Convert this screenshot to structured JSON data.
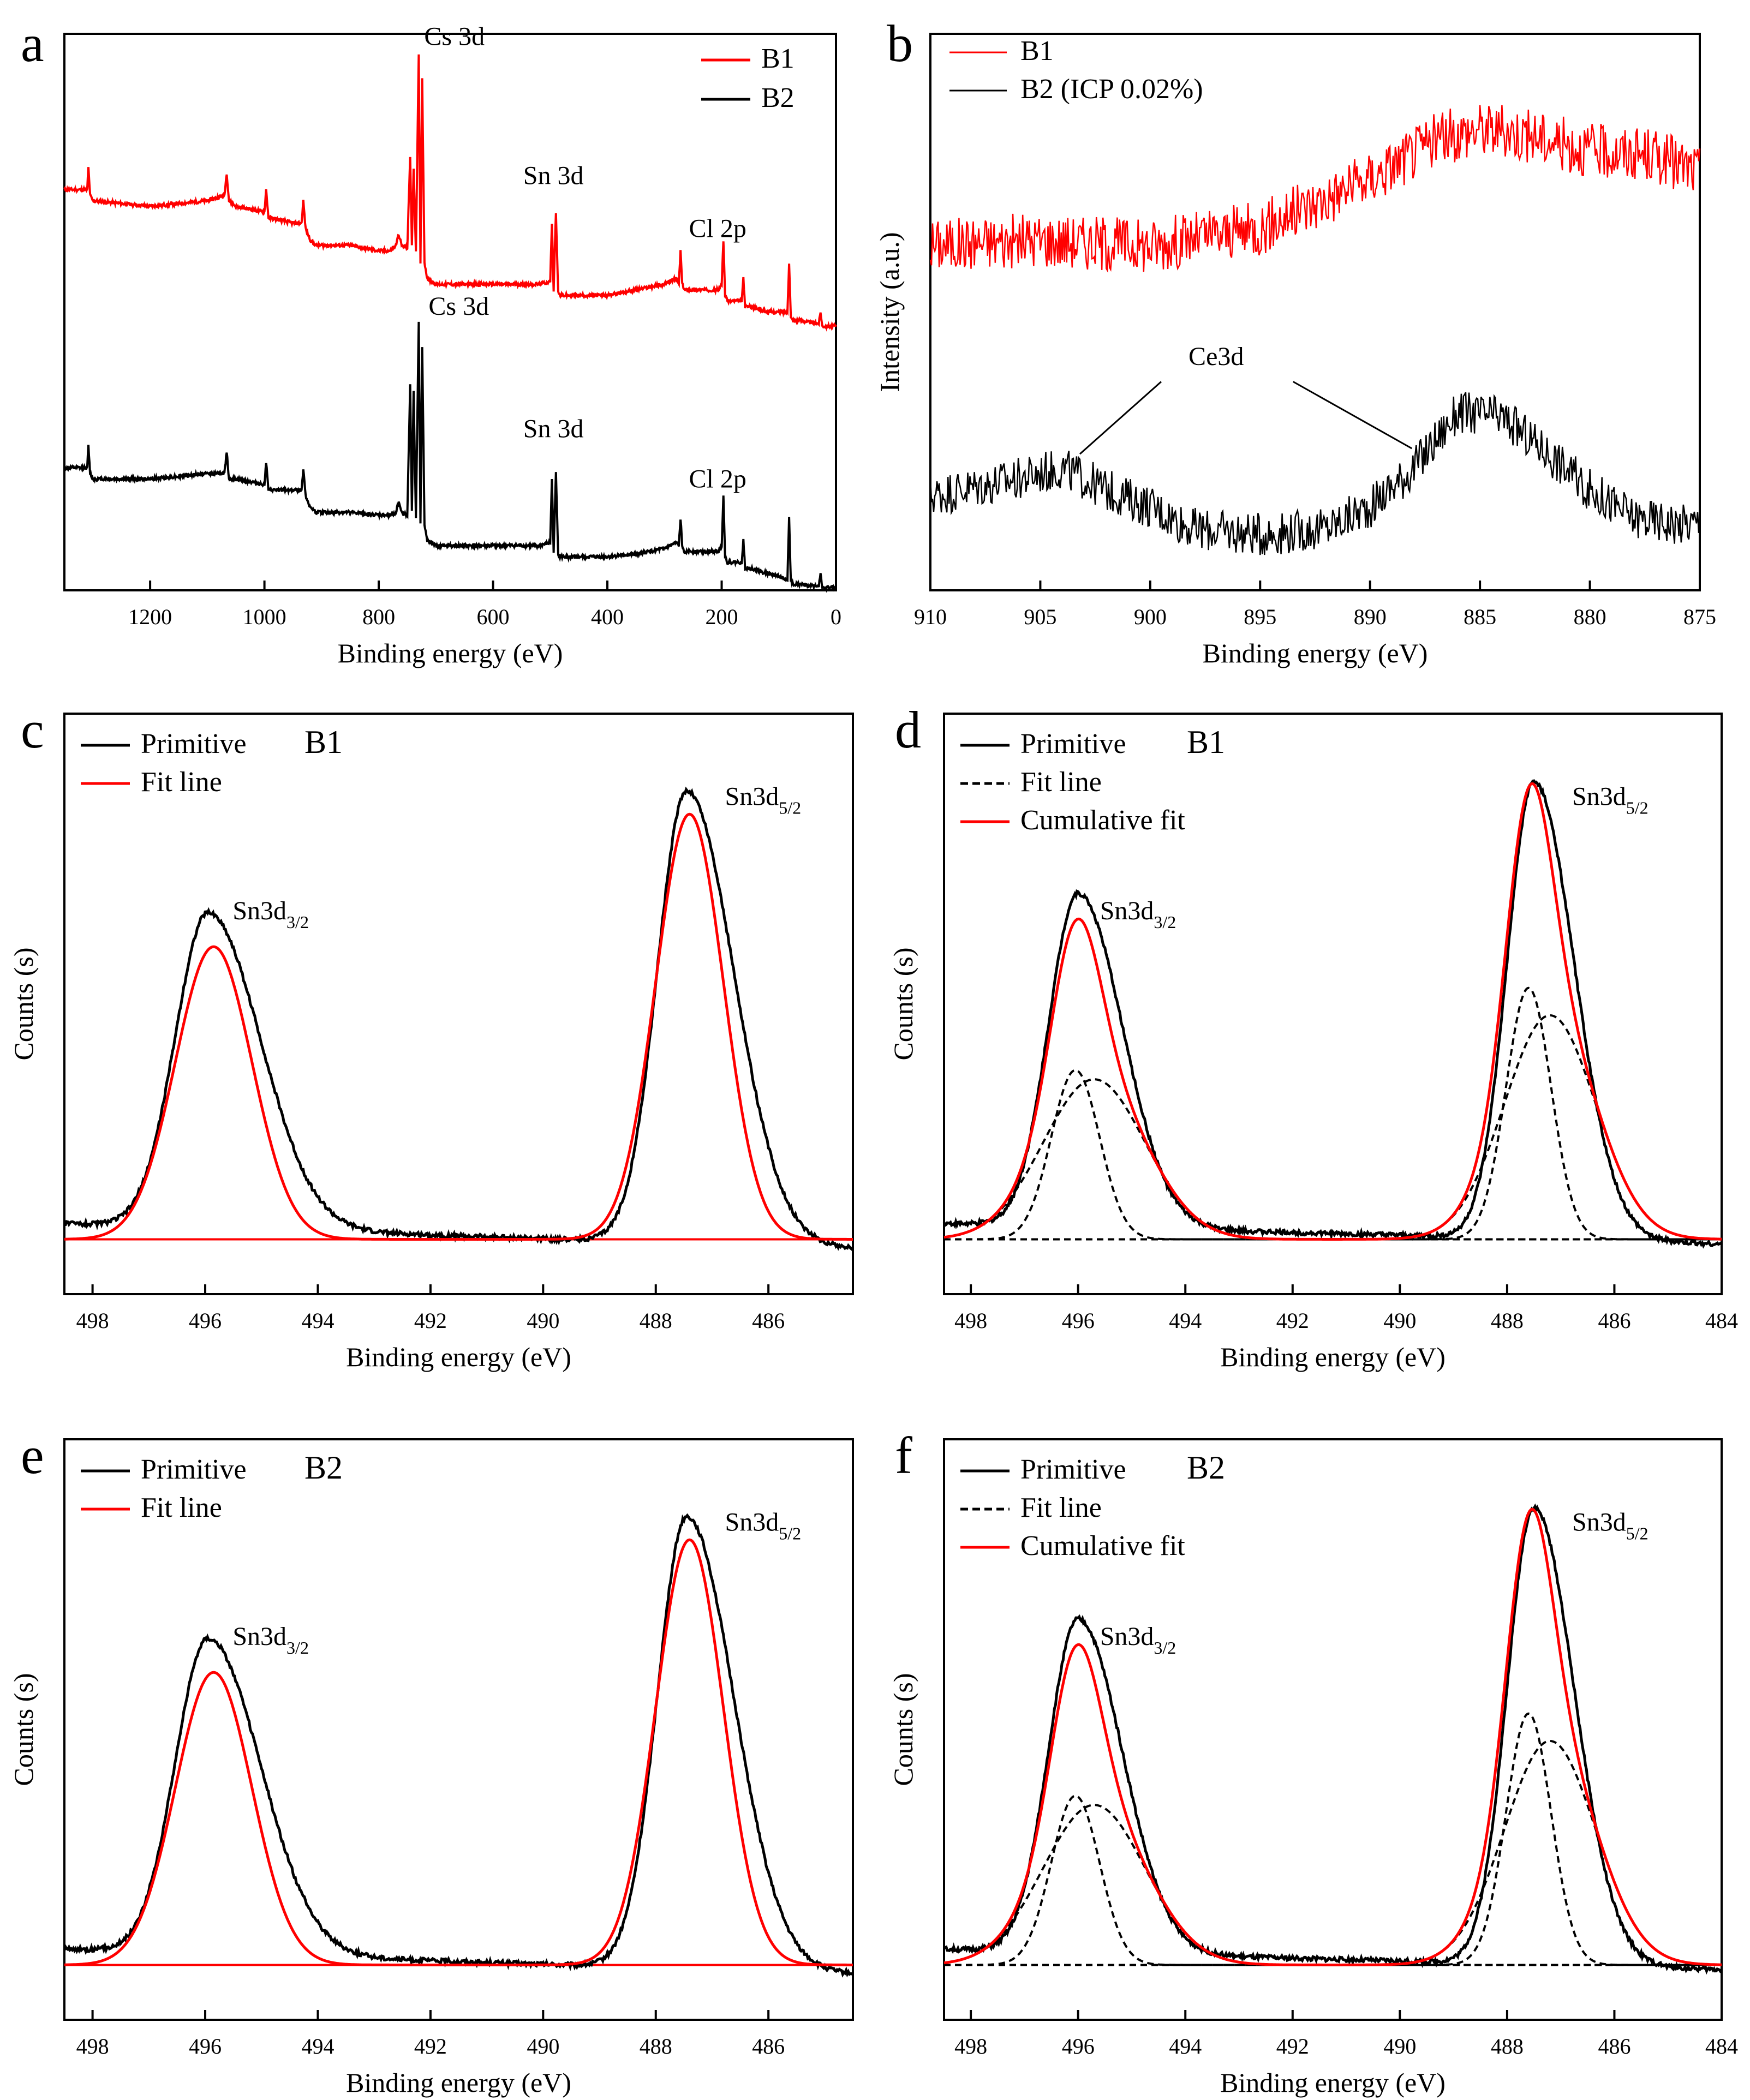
{
  "chart_data": [
    {
      "panel": "a",
      "type": "line",
      "xlabel": "Binding energy (eV)",
      "ylabel": "",
      "xlim": [
        1350,
        0
      ],
      "ylim": [
        0,
        10
      ],
      "xticks": [
        1200,
        1000,
        800,
        600,
        400,
        200,
        0
      ],
      "legend": {
        "position": "top-right",
        "entries": [
          {
            "label": "B1",
            "color": "#ff0000"
          },
          {
            "label": "B2",
            "color": "#000000"
          }
        ]
      },
      "series": [
        {
          "name": "B1",
          "color": "#ff0000",
          "x": [
            1350,
            1310,
            1308,
            1305,
            1300,
            1200,
            1100,
            1070,
            1066,
            1062,
            1050,
            1000,
            997,
            993,
            950,
            935,
            932,
            928,
            920,
            910,
            850,
            800,
            780,
            770,
            765,
            760,
            750,
            745,
            742,
            739,
            735,
            730,
            727,
            724,
            720,
            715,
            700,
            600,
            520,
            500,
            497,
            494,
            490,
            486,
            483,
            480,
            450,
            400,
            350,
            300,
            280,
            275,
            272,
            269,
            265,
            230,
            205,
            200,
            197,
            194,
            190,
            170,
            165,
            162,
            159,
            150,
            120,
            100,
            90,
            85,
            82,
            79,
            75,
            60,
            40,
            30,
            27,
            24,
            20,
            0
          ],
          "y": [
            7.2,
            7.2,
            7.6,
            7.1,
            7.0,
            6.9,
            7.0,
            7.1,
            7.5,
            7.0,
            6.9,
            6.8,
            7.2,
            6.7,
            6.6,
            6.6,
            7.0,
            6.5,
            6.3,
            6.2,
            6.2,
            6.1,
            6.1,
            6.2,
            6.4,
            6.2,
            6.15,
            7.8,
            6.2,
            7.6,
            6.1,
            9.6,
            5.9,
            9.2,
            5.9,
            5.6,
            5.5,
            5.5,
            5.5,
            5.55,
            6.6,
            5.4,
            6.8,
            5.35,
            5.3,
            5.3,
            5.3,
            5.3,
            5.4,
            5.5,
            5.6,
            5.5,
            6.1,
            5.5,
            5.4,
            5.4,
            5.4,
            5.5,
            6.3,
            5.3,
            5.2,
            5.2,
            5.2,
            5.6,
            5.1,
            5.1,
            5.0,
            5.0,
            5.0,
            5.0,
            5.9,
            4.9,
            4.85,
            4.85,
            4.8,
            4.8,
            5.0,
            4.75,
            4.75,
            4.75
          ],
          "annotations": [
            {
              "text": "Cs 3d",
              "x": 730
            },
            {
              "text": "Sn 3d",
              "x": 490
            },
            {
              "text": "Cl 2p",
              "x": 200
            }
          ]
        },
        {
          "name": "B2",
          "color": "#000000",
          "x": [
            1350,
            1310,
            1308,
            1305,
            1300,
            1200,
            1100,
            1070,
            1066,
            1062,
            1050,
            1000,
            997,
            993,
            950,
            935,
            932,
            928,
            920,
            910,
            850,
            800,
            780,
            770,
            765,
            760,
            750,
            745,
            742,
            739,
            735,
            730,
            727,
            724,
            720,
            715,
            700,
            600,
            520,
            500,
            497,
            494,
            490,
            486,
            483,
            480,
            450,
            400,
            350,
            300,
            280,
            275,
            272,
            269,
            265,
            230,
            205,
            200,
            197,
            194,
            190,
            170,
            165,
            162,
            159,
            150,
            120,
            100,
            90,
            85,
            82,
            79,
            75,
            60,
            40,
            30,
            27,
            24,
            20,
            0
          ],
          "y": [
            2.2,
            2.2,
            2.6,
            2.1,
            2.0,
            2.0,
            2.1,
            2.1,
            2.5,
            2.0,
            2.0,
            1.9,
            2.3,
            1.8,
            1.8,
            1.8,
            2.2,
            1.7,
            1.5,
            1.4,
            1.4,
            1.35,
            1.35,
            1.4,
            1.6,
            1.4,
            1.35,
            3.7,
            1.4,
            3.6,
            1.3,
            4.8,
            1.2,
            4.4,
            1.2,
            0.9,
            0.8,
            0.8,
            0.8,
            0.85,
            2.0,
            0.7,
            2.1,
            0.65,
            0.6,
            0.6,
            0.6,
            0.6,
            0.65,
            0.75,
            0.85,
            0.8,
            1.3,
            0.8,
            0.7,
            0.7,
            0.7,
            0.8,
            1.7,
            0.6,
            0.5,
            0.5,
            0.5,
            0.9,
            0.4,
            0.4,
            0.3,
            0.25,
            0.2,
            0.2,
            1.3,
            0.15,
            0.12,
            0.1,
            0.08,
            0.08,
            0.3,
            0.06,
            0.05,
            0.05
          ],
          "annotations": [
            {
              "text": "Cs 3d",
              "x": 730
            },
            {
              "text": "Sn 3d",
              "x": 490
            },
            {
              "text": "Cl 2p",
              "x": 200
            }
          ]
        }
      ]
    },
    {
      "panel": "b",
      "type": "line",
      "xlabel": "Binding energy (eV)",
      "ylabel": "Intensity (a.u.)",
      "xlim": [
        910,
        875
      ],
      "ylim": [
        0,
        10
      ],
      "xticks": [
        910,
        905,
        900,
        895,
        890,
        885,
        880,
        875
      ],
      "legend": {
        "position": "top-left",
        "entries": [
          {
            "label": "B1",
            "color": "#ff0000"
          },
          {
            "label": "B2 (ICP 0.02%)",
            "color": "#000000"
          }
        ]
      },
      "annotation": "Ce3d",
      "series": [
        {
          "name": "B1",
          "color": "#ff0000",
          "x": [
            910,
            905,
            900,
            895,
            890,
            887,
            885,
            883,
            880,
            877,
            875
          ],
          "y": [
            6.2,
            6.3,
            6.2,
            6.5,
            7.4,
            8.1,
            8.3,
            8.2,
            7.9,
            7.8,
            7.5
          ],
          "noise": 0.45
        },
        {
          "name": "B2 (ICP 0.02%)",
          "color": "#000000",
          "x": [
            910,
            906,
            904,
            902,
            900,
            898,
            895,
            892,
            890,
            888,
            886,
            884,
            882,
            880,
            878,
            876,
            875
          ],
          "y": [
            1.7,
            2.0,
            2.2,
            1.8,
            1.5,
            1.1,
            1.0,
            1.1,
            1.5,
            2.2,
            3.2,
            3.1,
            2.5,
            1.8,
            1.3,
            1.2,
            1.2
          ],
          "noise": 0.35
        }
      ]
    },
    {
      "panel": "c",
      "type": "line",
      "sample_label": "B1",
      "xlabel": "Binding energy (eV)",
      "ylabel": "Counts (s)",
      "xlim": [
        498.5,
        484.5
      ],
      "ylim": [
        -1.2,
        11.5
      ],
      "xticks": [
        498,
        496,
        494,
        492,
        490,
        488,
        486
      ],
      "legend": {
        "position": "top-left",
        "entries": [
          {
            "label": "Primitive",
            "color": "#000000",
            "style": "solid"
          },
          {
            "label": "Fit line",
            "color": "#ff0000",
            "style": "solid"
          }
        ]
      },
      "annotations": [
        {
          "text": "Sn3d",
          "sub": "3/2",
          "x": 495.9
        },
        {
          "text": "Sn3d",
          "sub": "5/2",
          "x": 487.45
        }
      ],
      "series": [
        {
          "name": "Primitive",
          "color": "#000000",
          "peaks": [
            {
              "center": 495.95,
              "height": 6.9,
              "sigma": 0.58,
              "tail": 1.6
            },
            {
              "center": 487.45,
              "height": 9.9,
              "sigma": 0.52,
              "tail": 1.6
            }
          ],
          "baseline_left": 0.35,
          "baseline_right": -0.2,
          "noise": 0.05
        },
        {
          "name": "Fit line",
          "color": "#ff0000",
          "peaks": [
            {
              "center": 495.85,
              "height": 6.4,
              "sigma": 0.68
            },
            {
              "center": 487.4,
              "height": 9.3,
              "sigma": 0.6
            }
          ],
          "baseline_left": 0,
          "baseline_right": 0
        }
      ]
    },
    {
      "panel": "d",
      "type": "line",
      "sample_label": "B1",
      "xlabel": "Binding energy (eV)",
      "ylabel": "Counts (s)",
      "xlim": [
        498.5,
        484
      ],
      "ylim": [
        -1.2,
        11.5
      ],
      "xticks": [
        498,
        496,
        494,
        492,
        490,
        488,
        486,
        484
      ],
      "legend": {
        "position": "top-left",
        "entries": [
          {
            "label": "Primitive",
            "color": "#000000",
            "style": "solid"
          },
          {
            "label": "Fit line",
            "color": "#000000",
            "style": "dashed"
          },
          {
            "label": "Cumulative fit",
            "color": "#ff0000",
            "style": "solid"
          }
        ]
      },
      "annotations": [
        {
          "text": "Sn3d",
          "sub": "3/2",
          "x": 496.0
        },
        {
          "text": "Sn3d",
          "sub": "5/2",
          "x": 487.5
        }
      ],
      "series": [
        {
          "name": "Primitive",
          "color": "#000000",
          "peaks": [
            {
              "center": 496.0,
              "height": 7.3,
              "sigma": 0.55,
              "tail": 1.5
            },
            {
              "center": 487.5,
              "height": 10.0,
              "sigma": 0.5,
              "tail": 1.5
            }
          ],
          "baseline_left": 0.35,
          "baseline_right": -0.1,
          "noise": 0.05
        },
        {
          "name": "Fit line 1",
          "color": "#000000",
          "dash": true,
          "peaks": [
            {
              "center": 496.05,
              "height": 3.7,
              "sigma": 0.45
            }
          ],
          "baseline_left": 0,
          "baseline_right": 0
        },
        {
          "name": "Fit line 2",
          "color": "#000000",
          "dash": true,
          "peaks": [
            {
              "center": 495.7,
              "height": 3.5,
              "sigma": 0.95
            }
          ],
          "baseline_left": 0,
          "baseline_right": 0
        },
        {
          "name": "Fit line 3",
          "color": "#000000",
          "dash": true,
          "peaks": [
            {
              "center": 487.6,
              "height": 5.5,
              "sigma": 0.42
            }
          ],
          "baseline_left": 0,
          "baseline_right": 0
        },
        {
          "name": "Fit line 4",
          "color": "#000000",
          "dash": true,
          "peaks": [
            {
              "center": 487.2,
              "height": 4.9,
              "sigma": 0.85
            }
          ],
          "baseline_left": 0,
          "baseline_right": 0
        },
        {
          "name": "Cumulative fit",
          "color": "#ff0000",
          "peaks": [
            {
              "center": 496.05,
              "height": 3.7,
              "sigma": 0.45
            },
            {
              "center": 495.7,
              "height": 3.5,
              "sigma": 0.95
            },
            {
              "center": 487.6,
              "height": 5.5,
              "sigma": 0.42
            },
            {
              "center": 487.2,
              "height": 4.9,
              "sigma": 0.85
            }
          ],
          "baseline_left": 0,
          "baseline_right": 0
        }
      ]
    },
    {
      "panel": "e",
      "type": "line",
      "sample_label": "B2",
      "xlabel": "Binding energy (eV)",
      "ylabel": "Counts (s)",
      "xlim": [
        498.5,
        484.5
      ],
      "ylim": [
        -1.2,
        11.5
      ],
      "xticks": [
        498,
        496,
        494,
        492,
        490,
        488,
        486
      ],
      "legend": {
        "position": "top-left",
        "entries": [
          {
            "label": "Primitive",
            "color": "#000000",
            "style": "solid"
          },
          {
            "label": "Fit line",
            "color": "#ff0000",
            "style": "solid"
          }
        ]
      },
      "annotations": [
        {
          "text": "Sn3d",
          "sub": "3/2",
          "x": 495.9
        },
        {
          "text": "Sn3d",
          "sub": "5/2",
          "x": 487.45
        }
      ],
      "series": [
        {
          "name": "Primitive",
          "color": "#000000",
          "peaks": [
            {
              "center": 495.95,
              "height": 6.9,
              "sigma": 0.58,
              "tail": 1.6
            },
            {
              "center": 487.45,
              "height": 9.9,
              "sigma": 0.52,
              "tail": 1.6
            }
          ],
          "baseline_left": 0.35,
          "baseline_right": -0.2,
          "noise": 0.05
        },
        {
          "name": "Fit line",
          "color": "#ff0000",
          "peaks": [
            {
              "center": 495.85,
              "height": 6.4,
              "sigma": 0.68
            },
            {
              "center": 487.4,
              "height": 9.3,
              "sigma": 0.6
            }
          ],
          "baseline_left": 0,
          "baseline_right": 0
        }
      ]
    },
    {
      "panel": "f",
      "type": "line",
      "sample_label": "B2",
      "xlabel": "Binding energy (eV)",
      "ylabel": "Counts (s)",
      "xlim": [
        498.5,
        484
      ],
      "ylim": [
        -1.2,
        11.5
      ],
      "xticks": [
        498,
        496,
        494,
        492,
        490,
        488,
        486,
        484
      ],
      "legend": {
        "position": "top-left",
        "entries": [
          {
            "label": "Primitive",
            "color": "#000000",
            "style": "solid"
          },
          {
            "label": "Fit line",
            "color": "#000000",
            "style": "dashed"
          },
          {
            "label": "Cumulative fit",
            "color": "#ff0000",
            "style": "solid"
          }
        ]
      },
      "annotations": [
        {
          "text": "Sn3d",
          "sub": "3/2",
          "x": 496.0
        },
        {
          "text": "Sn3d",
          "sub": "5/2",
          "x": 487.5
        }
      ],
      "series": [
        {
          "name": "Primitive",
          "color": "#000000",
          "peaks": [
            {
              "center": 496.0,
              "height": 7.3,
              "sigma": 0.55,
              "tail": 1.5
            },
            {
              "center": 487.5,
              "height": 10.0,
              "sigma": 0.5,
              "tail": 1.5
            }
          ],
          "baseline_left": 0.35,
          "baseline_right": -0.1,
          "noise": 0.05
        },
        {
          "name": "Fit line 1",
          "color": "#000000",
          "dash": true,
          "peaks": [
            {
              "center": 496.05,
              "height": 3.7,
              "sigma": 0.45
            }
          ],
          "baseline_left": 0,
          "baseline_right": 0
        },
        {
          "name": "Fit line 2",
          "color": "#000000",
          "dash": true,
          "peaks": [
            {
              "center": 495.7,
              "height": 3.5,
              "sigma": 0.95
            }
          ],
          "baseline_left": 0,
          "baseline_right": 0
        },
        {
          "name": "Fit line 3",
          "color": "#000000",
          "dash": true,
          "peaks": [
            {
              "center": 487.6,
              "height": 5.5,
              "sigma": 0.42
            }
          ],
          "baseline_left": 0,
          "baseline_right": 0
        },
        {
          "name": "Fit line 4",
          "color": "#000000",
          "dash": true,
          "peaks": [
            {
              "center": 487.2,
              "height": 4.9,
              "sigma": 0.85
            }
          ],
          "baseline_left": 0,
          "baseline_right": 0
        },
        {
          "name": "Cumulative fit",
          "color": "#ff0000",
          "peaks": [
            {
              "center": 496.05,
              "height": 3.7,
              "sigma": 0.45
            },
            {
              "center": 495.7,
              "height": 3.5,
              "sigma": 0.95
            },
            {
              "center": 487.6,
              "height": 5.5,
              "sigma": 0.42
            },
            {
              "center": 487.2,
              "height": 4.9,
              "sigma": 0.85
            }
          ],
          "baseline_left": 0,
          "baseline_right": 0
        }
      ]
    }
  ]
}
